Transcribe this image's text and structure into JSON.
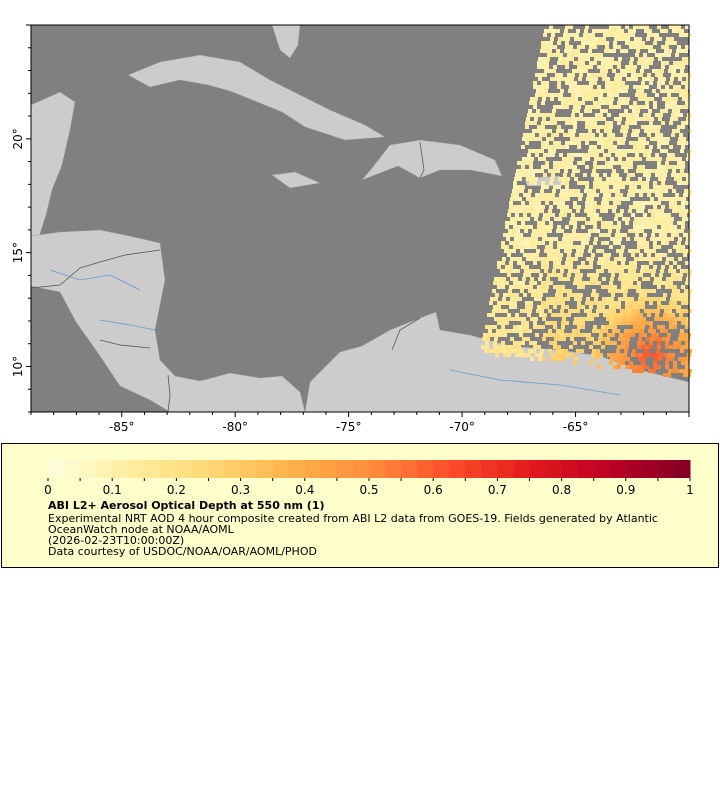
{
  "map": {
    "lon_range": [
      -89,
      -60
    ],
    "lat_range": [
      8,
      25
    ],
    "x_ticks": [
      "-85°",
      "-80°",
      "-75°",
      "-70°",
      "-65°"
    ],
    "x_tick_values": [
      -85,
      -80,
      -75,
      -70,
      -65
    ],
    "y_ticks": [
      "20°",
      "15°",
      "10°"
    ],
    "y_tick_values": [
      20,
      15,
      10
    ],
    "colors": {
      "ocean": "#808080",
      "land": "#cccccc",
      "rivers": "#6699cc",
      "borders": "#000000"
    }
  },
  "legend": {
    "ticks": [
      "0",
      "0.1",
      "0.2",
      "0.3",
      "0.4",
      "0.5",
      "0.6",
      "0.7",
      "0.8",
      "0.9",
      "1"
    ],
    "range": [
      0,
      1
    ],
    "title": "ABI L2+ Aerosol Optical Depth at 550 nm (1)",
    "line1": "Experimental NRT AOD 4 hour composite created from ABI L2 data from GOES-19. Fields generated by Atlantic",
    "line2": "OceanWatch node at NOAA/AOML",
    "line3": "(2026-02-23T10:00:00Z)",
    "line4": "Data courtesy of USDOC/NOAA/OAR/AOML/PHOD",
    "colormap": [
      "#ffffe0",
      "#ffeda0",
      "#fed976",
      "#feb24c",
      "#fd8d3c",
      "#fc4e2a",
      "#e31a1c",
      "#bd0026",
      "#800026"
    ]
  }
}
